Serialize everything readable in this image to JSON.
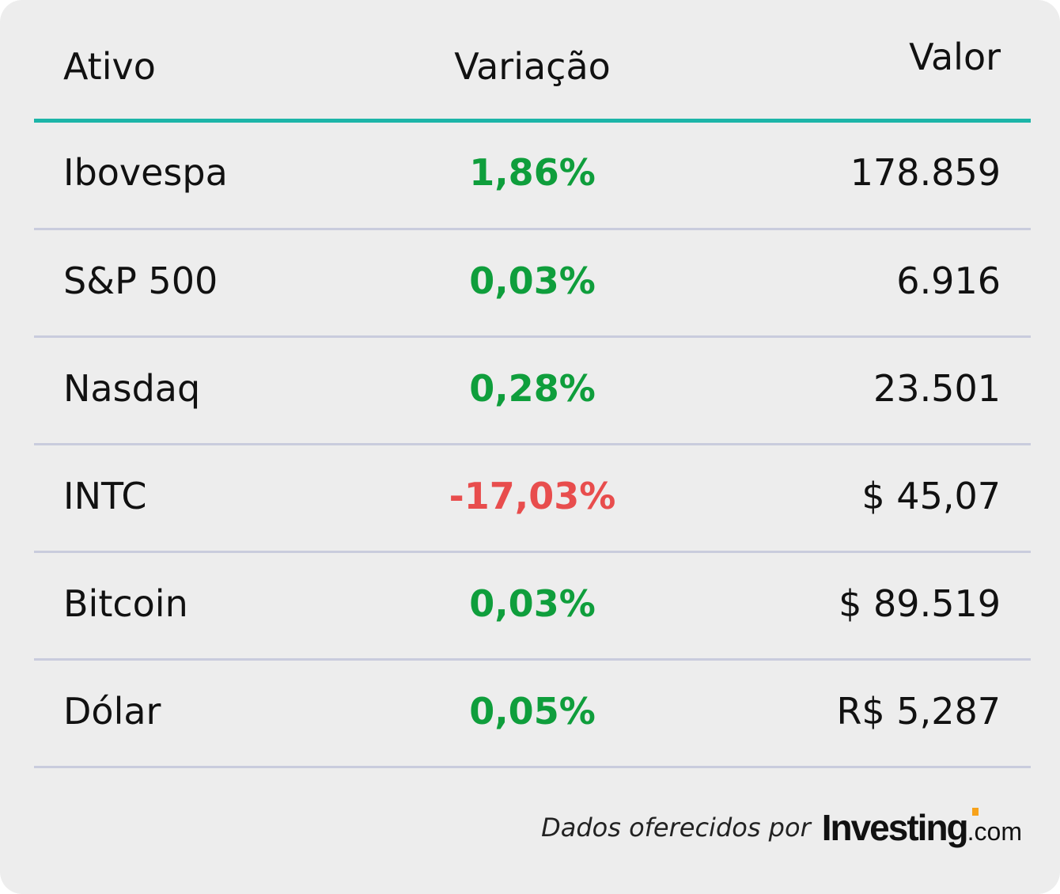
{
  "table": {
    "headers": {
      "asset": "Ativo",
      "change": "Variação",
      "value": "Valor"
    },
    "rows": [
      {
        "asset": "Ibovespa",
        "change": "1,86%",
        "value": "178.859",
        "direction": "up"
      },
      {
        "asset": "S&P 500",
        "change": "0,03%",
        "value": "6.916",
        "direction": "up"
      },
      {
        "asset": "Nasdaq",
        "change": "0,28%",
        "value": "23.501",
        "direction": "up"
      },
      {
        "asset": "INTC",
        "change": "-17,03%",
        "value": "$ 45,07",
        "direction": "down"
      },
      {
        "asset": "Bitcoin",
        "change": "0,03%",
        "value": "$ 89.519",
        "direction": "up"
      },
      {
        "asset": "Dólar",
        "change": "0,05%",
        "value": "R$ 5,287",
        "direction": "up"
      }
    ]
  },
  "footer": {
    "text": "Dados oferecidos por",
    "logo_main": "Investing",
    "logo_suffix": ".com"
  },
  "colors": {
    "accent_rule": "#1cb5a8",
    "positive": "#0f9e3c",
    "negative": "#e84d4d",
    "logo_accent": "#f7a21b"
  }
}
